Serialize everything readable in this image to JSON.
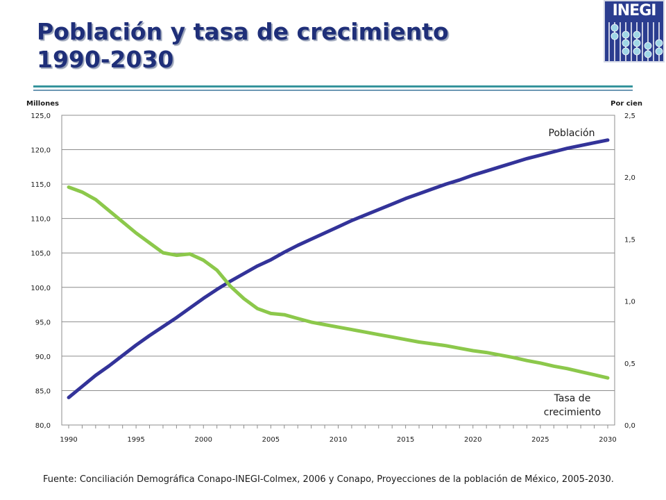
{
  "header": {
    "title_line1": "Población y tasa de crecimiento",
    "title_line2": "1990-2030",
    "logo_text": "INEGI",
    "colors": {
      "title": "#1f2f79",
      "rule_top": "#35949c",
      "rule_bottom": "#6c97b3"
    }
  },
  "chart_data": {
    "type": "line",
    "x": [
      1990,
      1991,
      1992,
      1993,
      1994,
      1995,
      1996,
      1997,
      1998,
      1999,
      2000,
      2001,
      2002,
      2003,
      2004,
      2005,
      2006,
      2007,
      2008,
      2009,
      2010,
      2011,
      2012,
      2013,
      2014,
      2015,
      2016,
      2017,
      2018,
      2019,
      2020,
      2021,
      2022,
      2023,
      2024,
      2025,
      2026,
      2027,
      2028,
      2029,
      2030
    ],
    "xlim": [
      1990,
      2030
    ],
    "xticks": [
      1990,
      1995,
      2000,
      2005,
      2010,
      2015,
      2020,
      2025,
      2030
    ],
    "ylabel_left": "Millones",
    "ylabel_right": "Por cien",
    "ylim_left": [
      80,
      125
    ],
    "ylim_right": [
      0,
      2.5
    ],
    "yticks_left": [
      "80,0",
      "85,0",
      "90,0",
      "95,0",
      "100,0",
      "105,0",
      "110,0",
      "115,0",
      "120,0",
      "125,0"
    ],
    "yticks_right": [
      "0,0",
      "0,5",
      "1,0",
      "1,5",
      "2,0",
      "2,5"
    ],
    "grid": true,
    "series": [
      {
        "name": "Población",
        "axis": "left",
        "color": "#333399",
        "values": [
          84.0,
          85.6,
          87.2,
          88.6,
          90.1,
          91.6,
          93.0,
          94.3,
          95.6,
          97.0,
          98.4,
          99.7,
          100.9,
          102.0,
          103.1,
          104.0,
          105.1,
          106.1,
          107.0,
          107.9,
          108.8,
          109.7,
          110.5,
          111.3,
          112.1,
          112.9,
          113.6,
          114.3,
          115.0,
          115.6,
          116.3,
          116.9,
          117.5,
          118.1,
          118.7,
          119.2,
          119.7,
          120.2,
          120.6,
          121.0,
          121.4
        ]
      },
      {
        "name": "Tasa de crecimiento",
        "axis": "right",
        "color": "#8cc84b",
        "values": [
          1.92,
          1.88,
          1.82,
          1.73,
          1.64,
          1.55,
          1.47,
          1.39,
          1.37,
          1.38,
          1.33,
          1.25,
          1.12,
          1.02,
          0.94,
          0.9,
          0.89,
          0.86,
          0.83,
          0.81,
          0.79,
          0.77,
          0.75,
          0.73,
          0.71,
          0.69,
          0.67,
          0.655,
          0.64,
          0.62,
          0.6,
          0.585,
          0.565,
          0.545,
          0.52,
          0.5,
          0.475,
          0.455,
          0.43,
          0.405,
          0.38
        ]
      }
    ],
    "annotations": [
      "Población",
      [
        "Tasa de",
        "crecimiento"
      ]
    ]
  },
  "footer": {
    "source": "Fuente: Conciliación Demográfica Conapo-INEGI-Colmex, 2006 y Conapo, Proyecciones de la población de México, 2005-2030."
  }
}
